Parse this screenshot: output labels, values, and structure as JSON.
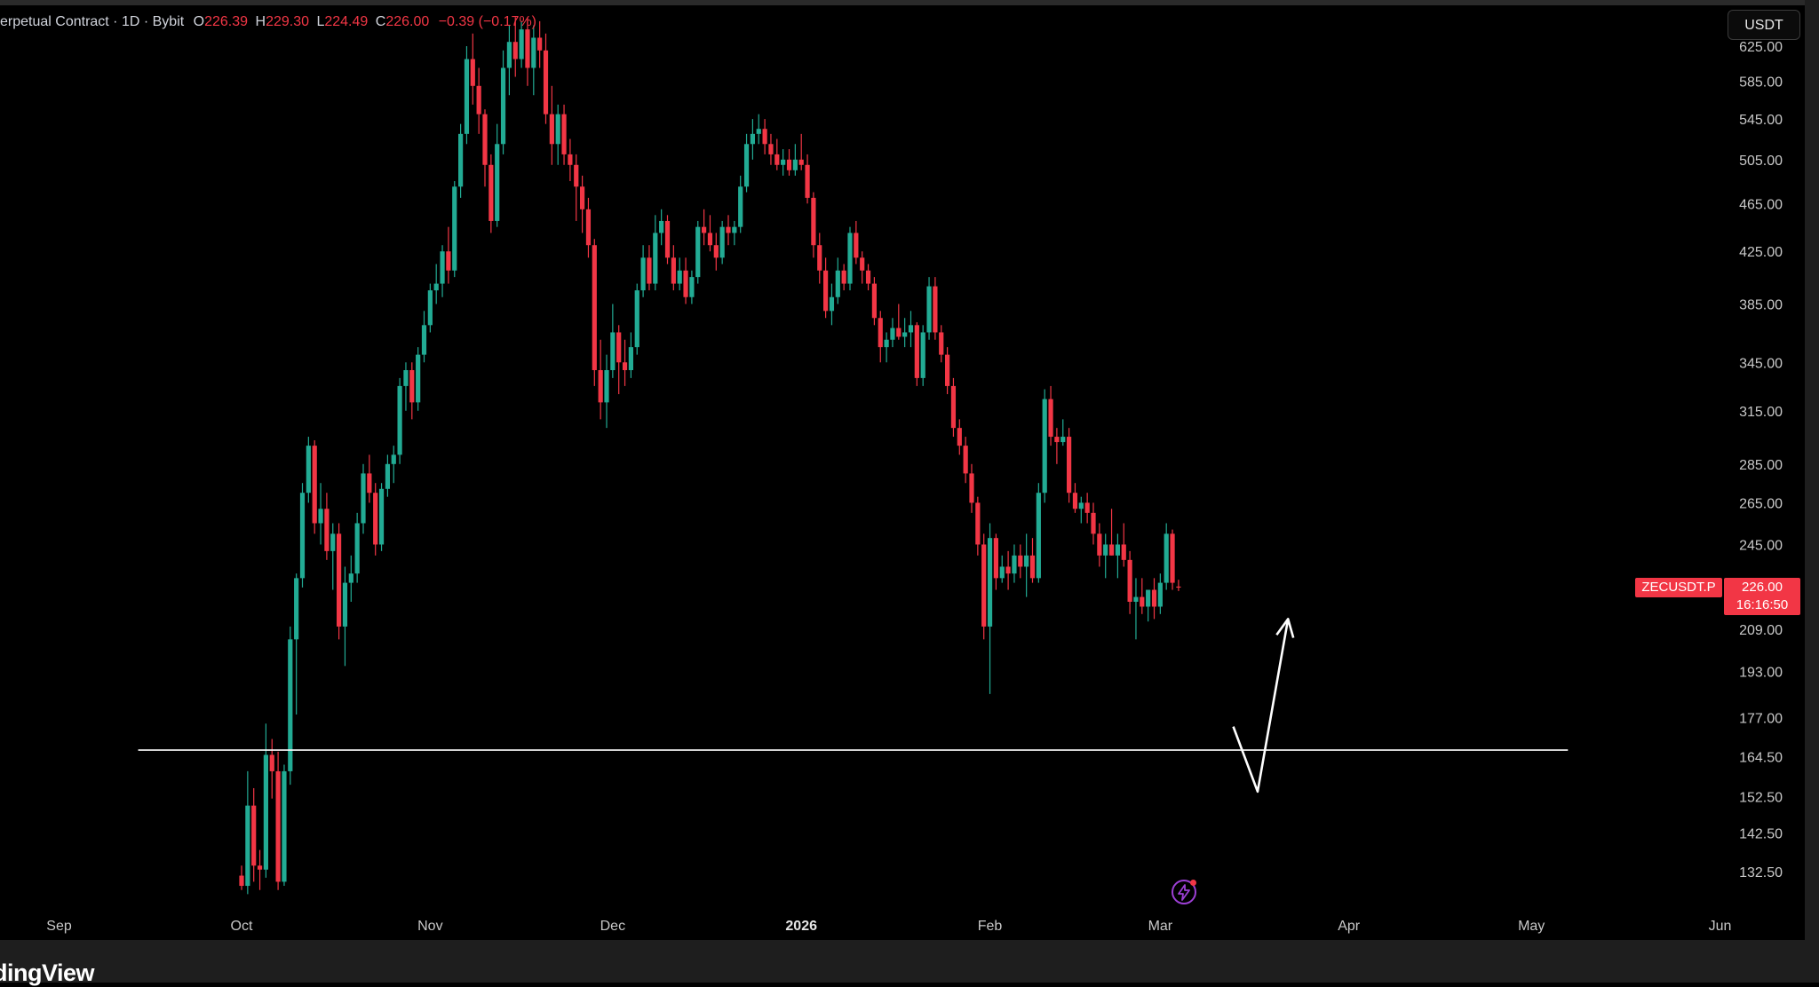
{
  "legend": {
    "title": "erpetual Contract · 1D · Bybit",
    "open_label": "O",
    "open": "226.39",
    "high_label": "H",
    "high": "229.30",
    "low_label": "L",
    "low": "224.49",
    "close_label": "C",
    "close": "226.00",
    "change": "−0.39 (−0.17%)"
  },
  "currency_button": "USDT",
  "symbol_tag": "ZECUSDT.P",
  "price_tag": {
    "price": "226.00",
    "countdown": "16:16:50"
  },
  "brand": "dingView",
  "colors": {
    "up": "#22ab94",
    "down": "#f23645",
    "background": "#000000",
    "drawing": "#ffffff"
  },
  "icons": {
    "bolt": "lightning-bolt-icon"
  },
  "chart_data": {
    "type": "candlestick",
    "title": "",
    "xlabel": "",
    "ylabel": "",
    "y_scale": "log",
    "y_ticks": [
      "625.00",
      "585.00",
      "545.00",
      "505.00",
      "465.00",
      "425.00",
      "385.00",
      "345.00",
      "315.00",
      "285.00",
      "265.00",
      "245.00",
      "209.00",
      "193.00",
      "177.00",
      "164.50",
      "152.50",
      "142.50",
      "132.50"
    ],
    "x_ticks": [
      {
        "label": "Sep",
        "date": "2025-09-01"
      },
      {
        "label": "Oct",
        "date": "2025-10-01"
      },
      {
        "label": "Nov",
        "date": "2025-11-01"
      },
      {
        "label": "Dec",
        "date": "2025-12-01"
      },
      {
        "label": "2026",
        "date": "2026-01-01",
        "bold": true
      },
      {
        "label": "Feb",
        "date": "2026-02-01"
      },
      {
        "label": "Mar",
        "date": "2026-03-01"
      },
      {
        "label": "Apr",
        "date": "2026-04-01"
      },
      {
        "label": "May",
        "date": "2026-05-01"
      },
      {
        "label": "Jun",
        "date": "2026-06-01"
      }
    ],
    "horizontal_line": {
      "price": 166.5,
      "from": "2025-09-14",
      "to": "2026-05-07"
    },
    "drawn_arrow": {
      "points": [
        {
          "date": "2026-03-13",
          "price": 174
        },
        {
          "date": "2026-03-17",
          "price": 154
        },
        {
          "date": "2026-03-22",
          "price": 213
        }
      ]
    },
    "last_price": 226.0,
    "candles": [
      [
        "2025-10-01",
        131.5,
        134,
        128,
        129
      ],
      [
        "2025-10-02",
        129,
        160,
        127,
        150
      ],
      [
        "2025-10-03",
        150,
        155,
        130,
        134
      ],
      [
        "2025-10-04",
        134,
        138,
        128,
        133
      ],
      [
        "2025-10-05",
        133,
        175,
        131,
        165
      ],
      [
        "2025-10-06",
        165,
        170,
        152,
        160
      ],
      [
        "2025-10-07",
        160,
        166,
        128,
        130
      ],
      [
        "2025-10-08",
        130,
        162,
        129,
        160
      ],
      [
        "2025-10-09",
        160,
        210,
        156,
        205
      ],
      [
        "2025-10-10",
        205,
        232,
        178,
        230
      ],
      [
        "2025-10-11",
        230,
        275,
        226,
        270
      ],
      [
        "2025-10-12",
        270,
        300,
        265,
        295
      ],
      [
        "2025-10-13",
        295,
        298,
        250,
        255
      ],
      [
        "2025-10-14",
        255,
        275,
        245,
        262
      ],
      [
        "2025-10-15",
        262,
        270,
        238,
        242
      ],
      [
        "2025-10-16",
        242,
        255,
        225,
        250
      ],
      [
        "2025-10-17",
        250,
        255,
        205,
        210
      ],
      [
        "2025-10-18",
        210,
        235,
        195,
        228
      ],
      [
        "2025-10-19",
        228,
        240,
        220,
        232
      ],
      [
        "2025-10-20",
        232,
        260,
        228,
        255
      ],
      [
        "2025-10-21",
        255,
        285,
        250,
        280
      ],
      [
        "2025-10-22",
        280,
        290,
        265,
        270
      ],
      [
        "2025-10-23",
        270,
        275,
        240,
        245
      ],
      [
        "2025-10-24",
        245,
        275,
        242,
        272
      ],
      [
        "2025-10-25",
        272,
        290,
        268,
        285
      ],
      [
        "2025-10-26",
        285,
        295,
        275,
        290
      ],
      [
        "2025-10-27",
        290,
        335,
        285,
        330
      ],
      [
        "2025-10-28",
        330,
        345,
        315,
        340
      ],
      [
        "2025-10-29",
        340,
        345,
        310,
        320
      ],
      [
        "2025-10-30",
        320,
        355,
        315,
        350
      ],
      [
        "2025-10-31",
        350,
        380,
        345,
        370
      ],
      [
        "2025-11-01",
        370,
        400,
        365,
        395
      ],
      [
        "2025-11-02",
        395,
        415,
        385,
        400
      ],
      [
        "2025-11-03",
        400,
        430,
        390,
        425
      ],
      [
        "2025-11-04",
        425,
        445,
        400,
        410
      ],
      [
        "2025-11-05",
        410,
        485,
        405,
        480
      ],
      [
        "2025-11-06",
        480,
        540,
        470,
        530
      ],
      [
        "2025-11-07",
        530,
        625,
        520,
        610
      ],
      [
        "2025-11-08",
        610,
        640,
        560,
        580
      ],
      [
        "2025-11-09",
        580,
        600,
        530,
        550
      ],
      [
        "2025-11-10",
        550,
        555,
        480,
        500
      ],
      [
        "2025-11-11",
        500,
        510,
        440,
        450
      ],
      [
        "2025-11-12",
        450,
        540,
        445,
        520
      ],
      [
        "2025-11-13",
        520,
        620,
        510,
        600
      ],
      [
        "2025-11-14",
        600,
        650,
        570,
        630
      ],
      [
        "2025-11-15",
        630,
        660,
        590,
        610
      ],
      [
        "2025-11-16",
        610,
        655,
        600,
        645
      ],
      [
        "2025-11-17",
        645,
        660,
        580,
        600
      ],
      [
        "2025-11-18",
        600,
        650,
        570,
        635
      ],
      [
        "2025-11-19",
        635,
        655,
        600,
        620
      ],
      [
        "2025-11-20",
        620,
        640,
        540,
        550
      ],
      [
        "2025-11-21",
        550,
        580,
        500,
        520
      ],
      [
        "2025-11-22",
        520,
        560,
        500,
        550
      ],
      [
        "2025-11-23",
        550,
        560,
        500,
        510
      ],
      [
        "2025-11-24",
        510,
        525,
        485,
        500
      ],
      [
        "2025-11-25",
        500,
        510,
        450,
        480
      ],
      [
        "2025-11-26",
        480,
        490,
        440,
        460
      ],
      [
        "2025-11-27",
        460,
        470,
        420,
        430
      ],
      [
        "2025-11-28",
        430,
        435,
        330,
        340
      ],
      [
        "2025-11-29",
        340,
        360,
        310,
        320
      ],
      [
        "2025-11-30",
        320,
        350,
        305,
        340
      ],
      [
        "2025-12-01",
        340,
        385,
        335,
        365
      ],
      [
        "2025-12-02",
        365,
        370,
        325,
        345
      ],
      [
        "2025-12-03",
        345,
        360,
        330,
        340
      ],
      [
        "2025-12-04",
        340,
        365,
        335,
        355
      ],
      [
        "2025-12-05",
        355,
        400,
        350,
        395
      ],
      [
        "2025-12-06",
        395,
        430,
        390,
        420
      ],
      [
        "2025-12-07",
        420,
        430,
        395,
        400
      ],
      [
        "2025-12-08",
        400,
        455,
        395,
        440
      ],
      [
        "2025-12-09",
        440,
        460,
        430,
        450
      ],
      [
        "2025-12-10",
        450,
        455,
        415,
        420
      ],
      [
        "2025-12-11",
        420,
        430,
        395,
        400
      ],
      [
        "2025-12-12",
        400,
        420,
        395,
        410
      ],
      [
        "2025-12-13",
        410,
        420,
        385,
        390
      ],
      [
        "2025-12-14",
        390,
        410,
        385,
        405
      ],
      [
        "2025-12-15",
        405,
        450,
        400,
        445
      ],
      [
        "2025-12-16",
        445,
        460,
        430,
        440
      ],
      [
        "2025-12-17",
        440,
        455,
        425,
        430
      ],
      [
        "2025-12-18",
        430,
        440,
        410,
        420
      ],
      [
        "2025-12-19",
        420,
        450,
        415,
        445
      ],
      [
        "2025-12-20",
        445,
        455,
        430,
        440
      ],
      [
        "2025-12-21",
        440,
        450,
        430,
        445
      ],
      [
        "2025-12-22",
        445,
        490,
        440,
        480
      ],
      [
        "2025-12-23",
        480,
        530,
        475,
        520
      ],
      [
        "2025-12-24",
        520,
        545,
        505,
        530
      ],
      [
        "2025-12-25",
        530,
        550,
        520,
        535
      ],
      [
        "2025-12-26",
        535,
        545,
        510,
        520
      ],
      [
        "2025-12-27",
        520,
        530,
        500,
        510
      ],
      [
        "2025-12-28",
        510,
        525,
        495,
        500
      ],
      [
        "2025-12-29",
        500,
        515,
        490,
        505
      ],
      [
        "2025-12-30",
        505,
        515,
        490,
        495
      ],
      [
        "2025-12-31",
        495,
        520,
        490,
        505
      ],
      [
        "2026-01-01",
        505,
        530,
        495,
        500
      ],
      [
        "2026-01-02",
        500,
        510,
        465,
        470
      ],
      [
        "2026-01-03",
        470,
        475,
        420,
        430
      ],
      [
        "2026-01-04",
        430,
        440,
        400,
        410
      ],
      [
        "2026-01-05",
        410,
        420,
        375,
        380
      ],
      [
        "2026-01-06",
        380,
        400,
        370,
        390
      ],
      [
        "2026-01-07",
        390,
        420,
        385,
        410
      ],
      [
        "2026-01-08",
        410,
        415,
        395,
        400
      ],
      [
        "2026-01-09",
        400,
        445,
        395,
        440
      ],
      [
        "2026-01-10",
        440,
        450,
        415,
        420
      ],
      [
        "2026-01-11",
        420,
        425,
        400,
        410
      ],
      [
        "2026-01-12",
        410,
        415,
        395,
        400
      ],
      [
        "2026-01-13",
        400,
        405,
        370,
        375
      ],
      [
        "2026-01-14",
        375,
        380,
        345,
        355
      ],
      [
        "2026-01-15",
        355,
        365,
        345,
        360
      ],
      [
        "2026-01-16",
        360,
        375,
        355,
        368
      ],
      [
        "2026-01-17",
        368,
        385,
        360,
        362
      ],
      [
        "2026-01-18",
        362,
        375,
        355,
        365
      ],
      [
        "2026-01-19",
        365,
        380,
        355,
        370
      ],
      [
        "2026-01-20",
        370,
        372,
        330,
        335
      ],
      [
        "2026-01-21",
        335,
        370,
        330,
        365
      ],
      [
        "2026-01-22",
        365,
        405,
        360,
        398
      ],
      [
        "2026-01-23",
        398,
        405,
        360,
        365
      ],
      [
        "2026-01-24",
        365,
        370,
        345,
        350
      ],
      [
        "2026-01-25",
        350,
        355,
        325,
        330
      ],
      [
        "2026-01-26",
        330,
        335,
        300,
        305
      ],
      [
        "2026-01-27",
        305,
        310,
        290,
        295
      ],
      [
        "2026-01-28",
        295,
        300,
        275,
        280
      ],
      [
        "2026-01-29",
        280,
        285,
        260,
        265
      ],
      [
        "2026-01-30",
        265,
        268,
        240,
        245
      ],
      [
        "2026-01-31",
        245,
        250,
        205,
        210
      ],
      [
        "2026-02-01",
        210,
        255,
        185,
        248
      ],
      [
        "2026-02-02",
        248,
        250,
        225,
        230
      ],
      [
        "2026-02-03",
        230,
        240,
        228,
        235
      ],
      [
        "2026-02-04",
        235,
        242,
        225,
        232
      ],
      [
        "2026-02-05",
        232,
        245,
        228,
        240
      ],
      [
        "2026-02-06",
        240,
        245,
        230,
        235
      ],
      [
        "2026-02-07",
        235,
        250,
        222,
        240
      ],
      [
        "2026-02-08",
        240,
        248,
        228,
        230
      ],
      [
        "2026-02-09",
        230,
        275,
        228,
        270
      ],
      [
        "2026-02-10",
        270,
        328,
        265,
        322
      ],
      [
        "2026-02-11",
        322,
        330,
        295,
        300
      ],
      [
        "2026-02-12",
        300,
        305,
        285,
        297
      ],
      [
        "2026-02-13",
        297,
        310,
        295,
        300
      ],
      [
        "2026-02-14",
        300,
        305,
        265,
        270
      ],
      [
        "2026-02-15",
        270,
        275,
        260,
        262
      ],
      [
        "2026-02-16",
        262,
        268,
        255,
        265
      ],
      [
        "2026-02-17",
        265,
        270,
        255,
        260
      ],
      [
        "2026-02-18",
        260,
        265,
        245,
        250
      ],
      [
        "2026-02-19",
        250,
        255,
        235,
        240
      ],
      [
        "2026-02-20",
        240,
        250,
        230,
        245
      ],
      [
        "2026-02-21",
        245,
        262,
        240,
        240
      ],
      [
        "2026-02-22",
        240,
        250,
        230,
        245
      ],
      [
        "2026-02-23",
        245,
        255,
        235,
        238
      ],
      [
        "2026-02-24",
        238,
        242,
        215,
        220
      ],
      [
        "2026-02-25",
        220,
        230,
        205,
        222
      ],
      [
        "2026-02-26",
        222,
        230,
        215,
        218
      ],
      [
        "2026-02-27",
        218,
        225,
        212,
        225
      ],
      [
        "2026-02-28",
        225,
        230,
        213,
        218
      ],
      [
        "2026-03-01",
        218,
        232,
        215,
        228
      ],
      [
        "2026-03-02",
        228,
        255,
        225,
        250
      ],
      [
        "2026-03-03",
        250,
        252,
        225,
        228
      ],
      [
        "2026-03-04",
        226.39,
        229.3,
        224.49,
        226.0
      ]
    ]
  }
}
